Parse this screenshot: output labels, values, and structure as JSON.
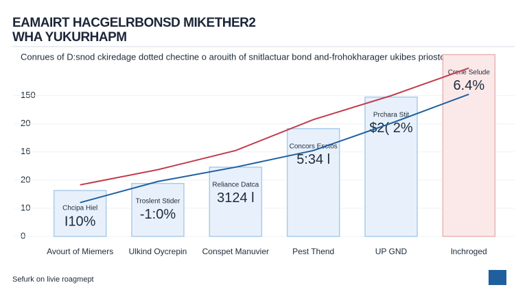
{
  "chart_data": {
    "type": "bar",
    "title": "EAMAIRT HACGELRBONSD MIKETHER2",
    "title_line2": "WHA YUKURHAPM",
    "subtitle": "Conrues of D:snod ckiredage dotted chectine o arouith of snitlactuar bond and-frohokharager ukibes prioston",
    "footer": "Sefurk on livie roagmept",
    "categories": [
      "Avourt of Miemers",
      "Ulkind Oycrepin",
      "Conspet Manuvier",
      "Pest Thend",
      "UP GND",
      "lnchroged"
    ],
    "values": [
      16.3,
      18.8,
      24.6,
      38.3,
      49.5,
      64.6
    ],
    "colors": [
      "#e8f1fb",
      "#e8f1fb",
      "#e8f1fb",
      "#e8f1fb",
      "#e8f1fb",
      "#fbe9e9"
    ],
    "bar_annotations": [
      {
        "title": "Chcipa Hiel",
        "label": "I10%"
      },
      {
        "title": "Troslent Stider",
        "label": "-1:0%"
      },
      {
        "title": "Reliance Datca",
        "label": "3124 l"
      },
      {
        "title": "Concors Esctos",
        "label": "5:34 l"
      },
      {
        "title": "Prchara Stit",
        "label": "$2( 2%"
      },
      {
        "title": "Crene Selude",
        "label": "6.4%"
      }
    ],
    "lines": [
      {
        "color": "#c23b4b",
        "values": [
          18.3,
          23.7,
          30.5,
          41.5,
          50.0,
          59.8
        ]
      },
      {
        "color": "#1f5f9e",
        "values": [
          12.0,
          19.5,
          24.6,
          30.5,
          40.2,
          50.5
        ]
      }
    ],
    "ylim": [
      0,
      65
    ],
    "yticks": [
      0,
      10,
      20,
      {
        "value": 30,
        "label": "16"
      },
      {
        "value": 40,
        "label": "20"
      },
      {
        "value": 50,
        "label": "150"
      }
    ],
    "grid": true
  }
}
